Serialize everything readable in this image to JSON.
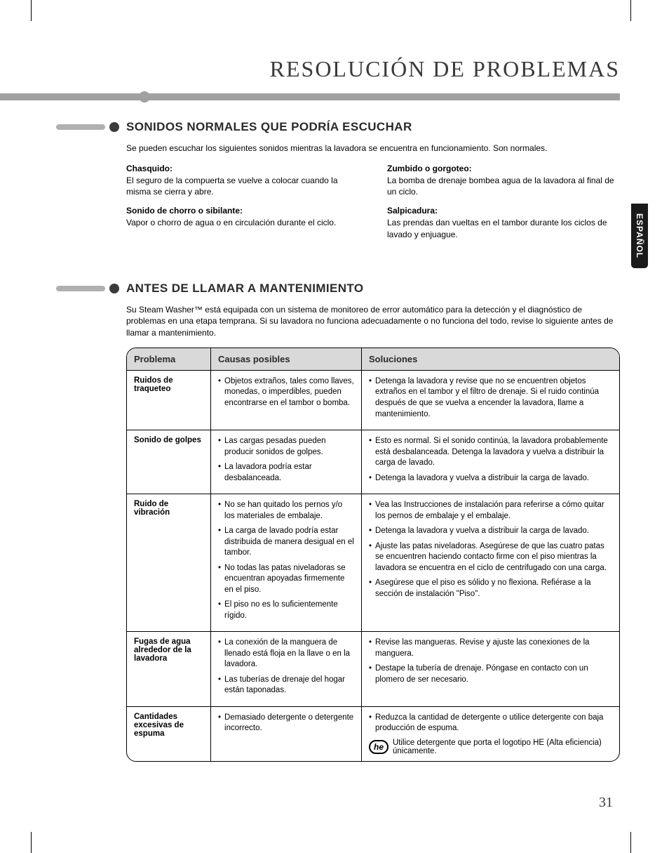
{
  "page_number": "31",
  "side_tab": "ESPAÑOL",
  "main_title": "RESOLUCIÓN DE PROBLEMAS",
  "section1": {
    "heading": "SONIDOS NORMALES QUE PODRÍA ESCUCHAR",
    "intro": "Se pueden escuchar los siguientes sonidos mientras la lavadora se encuentra en funcionamiento. Son normales.",
    "left": [
      {
        "label": "Chasquido:",
        "text": "El seguro de la compuerta se vuelve a colocar cuando la misma se cierra y abre."
      },
      {
        "label": "Sonido de chorro o sibilante:",
        "text": "Vapor o chorro de agua o en circulación durante el ciclo."
      }
    ],
    "right": [
      {
        "label": "Zumbido o gorgoteo:",
        "text": "La bomba de drenaje bombea agua de la lavadora al final de un ciclo."
      },
      {
        "label": "Salpicadura:",
        "text": "Las prendas dan vueltas en el tambor durante los ciclos de lavado y enjuague."
      }
    ]
  },
  "section2": {
    "heading": "ANTES DE LLAMAR A MANTENIMIENTO",
    "intro": "Su Steam Washer™ está equipada con un sistema de monitoreo de error automático para la detección y el diagnóstico de problemas en una etapa temprana. Si su lavadora no funciona adecuadamente o no funciona del todo, revise lo siguiente antes de llamar a mantenimiento.",
    "headers": {
      "p": "Problema",
      "c": "Causas posibles",
      "s": "Soluciones"
    },
    "rows": [
      {
        "p": "Ruidos de traqueteo",
        "c": [
          "Objetos extraños, tales como llaves, monedas, o imperdibles, pueden encontrarse en el tambor o bomba."
        ],
        "s": [
          "Detenga la lavadora y revise que no se encuentren objetos extraños en el tambor y el filtro de drenaje. Si el ruido continúa después de que se vuelva a encender la lavadora, llame a mantenimiento."
        ]
      },
      {
        "p": "Sonido de golpes",
        "c": [
          "Las cargas pesadas pueden producir sonidos de golpes.",
          "La lavadora podría estar desbalanceada."
        ],
        "s": [
          "Esto es normal. Si el sonido continúa, la lavadora probablemente está desbalanceada. Detenga la lavadora y vuelva a distribuir la carga de lavado.",
          "Detenga la lavadora y vuelva a distribuir la carga de lavado."
        ]
      },
      {
        "p": "Ruido de vibración",
        "c": [
          "No se han quitado los pernos y/o los materiales de embalaje.",
          "La carga de lavado podría estar distribuida de manera desigual en el tambor.",
          "No todas las patas niveladoras se encuentran apoyadas firmemente en el piso.",
          "El piso no es lo suficientemente rígido."
        ],
        "s": [
          "Vea las Instrucciones de instalación para referirse a cómo quitar los pernos de embalaje y el embalaje.",
          "Detenga la lavadora y vuelva a distribuir la carga de lavado.",
          "Ajuste las patas niveladoras. Asegúrese de que las cuatro patas se encuentren haciendo contacto firme con el piso mientras la lavadora se encuentra en el ciclo de centrifugado con una carga.",
          "Asegúrese que el piso es sólido y no flexiona. Refiérase a la sección de instalación \"Piso\"."
        ]
      },
      {
        "p": "Fugas de agua alrededor de la lavadora",
        "c": [
          "La conexión de la manguera de llenado está floja en la llave o en la lavadora.",
          "Las tuberías de drenaje del hogar están taponadas."
        ],
        "s": [
          "Revise las mangueras. Revise y ajuste las conexiones de la manguera.",
          "Destape la tubería de drenaje. Póngase en contacto con un plomero de ser necesario."
        ]
      },
      {
        "p": "Cantidades excesivas de espuma",
        "c": [
          "Demasiado detergente o detergente incorrecto."
        ],
        "s": [
          "Reduzca la cantidad de detergente o utilice detergente con baja producción de espuma."
        ],
        "he_text": "Utilice detergente que porta el logotipo HE (Alta eficiencia) únicamente."
      }
    ]
  },
  "colors": {
    "bar": "#a0a0a0",
    "table_head_bg": "#d9d9d9",
    "text": "#000000"
  }
}
